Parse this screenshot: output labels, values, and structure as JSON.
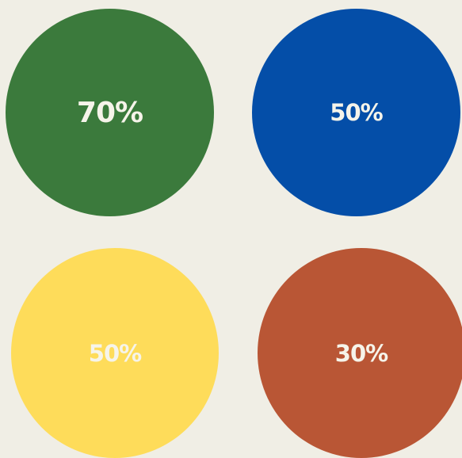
{
  "circles": [
    {
      "label": "70%",
      "value": 70,
      "color": "#3b7a3c"
    },
    {
      "label": "50%",
      "value": 50,
      "color": "#044ea8"
    },
    {
      "label": "50%",
      "value": 50,
      "color": "#fedc5a"
    },
    {
      "label": "30%",
      "value": 30,
      "color": "#b95635"
    }
  ],
  "background_color": "#f0eee5",
  "text_color": "#f6f4ea"
}
